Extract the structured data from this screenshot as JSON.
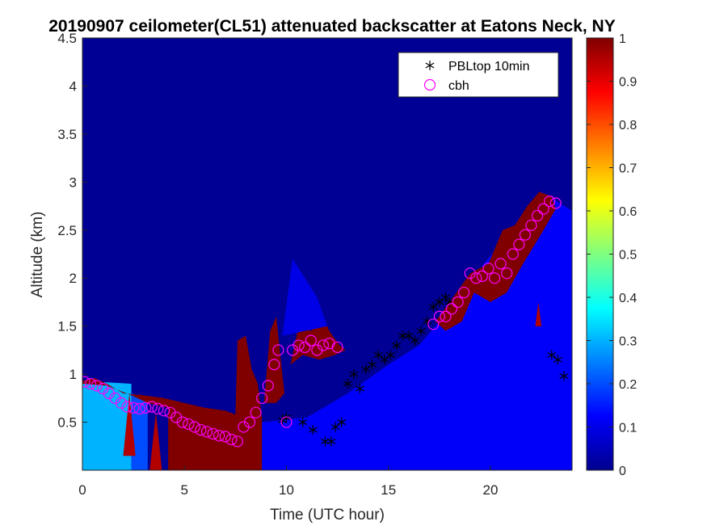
{
  "chart_data": {
    "type": "heatmap",
    "title": "20190907 ceilometer(CL51) attenuated backscatter at Eatons Neck, NY",
    "xlabel": "Time (UTC hour)",
    "ylabel": "Altitude (km)",
    "xlim": [
      0,
      24
    ],
    "ylim": [
      0,
      4.5
    ],
    "xticks": [
      0,
      5,
      10,
      15,
      20
    ],
    "xtick_labels": [
      "0",
      "5",
      "10",
      "15",
      "20"
    ],
    "yticks": [
      0.5,
      1,
      1.5,
      2,
      2.5,
      3,
      3.5,
      4,
      4.5
    ],
    "ytick_labels": [
      "0.5",
      "1",
      "1.5",
      "2",
      "2.5",
      "3",
      "3.5",
      "4",
      "4.5"
    ],
    "colorbar": {
      "colormap": "jet",
      "limits": [
        0,
        1
      ],
      "ticks": [
        0,
        0.1,
        0.2,
        0.3,
        0.4,
        0.5,
        0.6,
        0.7,
        0.8,
        0.9,
        1
      ],
      "tick_labels": [
        "0",
        "0.1",
        "0.2",
        "0.3",
        "0.4",
        "0.5",
        "0.6",
        "0.7",
        "0.8",
        "0.9",
        "1"
      ]
    },
    "legend": {
      "placement": "top-right",
      "entries": [
        "PBLtop 10min",
        "cbh"
      ]
    },
    "background_value": 0.02,
    "backscatter_regions": [
      {
        "value": 0.3,
        "polygon": [
          [
            0,
            0
          ],
          [
            2.4,
            0
          ],
          [
            2.4,
            0.9
          ],
          [
            0,
            0.93
          ]
        ]
      },
      {
        "value": 0.2,
        "polygon": [
          [
            2.4,
            0
          ],
          [
            3.2,
            0
          ],
          [
            3.2,
            0.75
          ],
          [
            2.4,
            0.8
          ]
        ]
      },
      {
        "value": 1.0,
        "polygon": [
          [
            0,
            0.93
          ],
          [
            0.6,
            0.96
          ],
          [
            1.2,
            0.9
          ],
          [
            2.0,
            0.8
          ],
          [
            3.0,
            0.78
          ],
          [
            4.0,
            0.75
          ],
          [
            5.0,
            0.7
          ],
          [
            6.0,
            0.65
          ],
          [
            7.0,
            0.62
          ],
          [
            7.5,
            0.58
          ],
          [
            7.6,
            1.35
          ],
          [
            8.0,
            1.4
          ],
          [
            8.3,
            1.05
          ],
          [
            8.6,
            0.9
          ],
          [
            8.8,
            0.55
          ],
          [
            8.8,
            0
          ],
          [
            4.2,
            0
          ],
          [
            4.2,
            0.65
          ],
          [
            3.2,
            0.7
          ],
          [
            2.4,
            0.78
          ],
          [
            1.2,
            0.88
          ],
          [
            0,
            0.9
          ]
        ]
      },
      {
        "value": 0.95,
        "polygon": [
          [
            2.0,
            0.15
          ],
          [
            2.3,
            0.8
          ],
          [
            2.6,
            0.15
          ]
        ]
      },
      {
        "value": 0.95,
        "polygon": [
          [
            3.3,
            0
          ],
          [
            3.6,
            0.6
          ],
          [
            3.9,
            0
          ]
        ]
      },
      {
        "value": 1.0,
        "polygon": [
          [
            8.9,
            0.7
          ],
          [
            9.2,
            1.45
          ],
          [
            9.5,
            1.6
          ],
          [
            9.7,
            1.2
          ],
          [
            9.9,
            0.8
          ],
          [
            9.5,
            0.7
          ]
        ]
      },
      {
        "value": 1.0,
        "polygon": [
          [
            10.2,
            1.1
          ],
          [
            10.6,
            1.5
          ],
          [
            11.2,
            1.45
          ],
          [
            11.8,
            1.6
          ],
          [
            12.1,
            1.45
          ],
          [
            12.6,
            1.3
          ],
          [
            12.9,
            1.25
          ],
          [
            12.4,
            1.2
          ],
          [
            11.6,
            1.15
          ],
          [
            10.8,
            1.2
          ]
        ]
      },
      {
        "value": 0.12,
        "polygon": [
          [
            8.8,
            0
          ],
          [
            24,
            0
          ],
          [
            24,
            2.7
          ],
          [
            22.5,
            2.9
          ],
          [
            21,
            2.5
          ],
          [
            19.5,
            2.1
          ],
          [
            18.5,
            1.8
          ],
          [
            17.5,
            1.55
          ],
          [
            16.5,
            1.3
          ],
          [
            15,
            1.1
          ],
          [
            13,
            0.8
          ],
          [
            11,
            0.55
          ],
          [
            8.8,
            0.5
          ]
        ]
      },
      {
        "value": 0.1,
        "polygon": [
          [
            9.8,
            1.4
          ],
          [
            10.3,
            2.2
          ],
          [
            11.5,
            1.8
          ],
          [
            12.0,
            1.5
          ]
        ]
      },
      {
        "value": 1.0,
        "polygon": [
          [
            17.3,
            1.55
          ],
          [
            18.0,
            1.75
          ],
          [
            19.0,
            2.05
          ],
          [
            19.9,
            2.15
          ],
          [
            20.6,
            2.5
          ],
          [
            21.2,
            2.55
          ],
          [
            21.8,
            2.75
          ],
          [
            22.4,
            2.9
          ],
          [
            23.0,
            2.85
          ],
          [
            23.2,
            2.72
          ],
          [
            22.6,
            2.5
          ],
          [
            21.6,
            2.15
          ],
          [
            20.8,
            1.85
          ],
          [
            20.0,
            1.75
          ],
          [
            19.2,
            1.85
          ],
          [
            18.6,
            1.55
          ],
          [
            17.8,
            1.45
          ]
        ]
      },
      {
        "value": 0.95,
        "polygon": [
          [
            22.2,
            1.5
          ],
          [
            22.35,
            1.75
          ],
          [
            22.5,
            1.5
          ]
        ]
      }
    ],
    "series": [
      {
        "name": "PBLtop 10min",
        "marker": "asterisk",
        "color": "#000000",
        "x": [
          9.8,
          10.0,
          10.8,
          11.3,
          11.9,
          12.2,
          12.4,
          12.7,
          13.0,
          13.3,
          13.6,
          13.9,
          14.2,
          14.5,
          14.8,
          15.1,
          15.4,
          15.7,
          16.0,
          16.3,
          16.6,
          16.9,
          17.2,
          17.5,
          17.8,
          18.0,
          23.0,
          23.3,
          23.6
        ],
        "y": [
          0.52,
          0.55,
          0.5,
          0.42,
          0.3,
          0.3,
          0.45,
          0.5,
          0.9,
          1.0,
          0.85,
          1.05,
          1.1,
          1.2,
          1.15,
          1.2,
          1.3,
          1.4,
          1.4,
          1.35,
          1.45,
          1.55,
          1.7,
          1.75,
          1.8,
          1.75,
          1.2,
          1.15,
          0.98
        ]
      },
      {
        "name": "cbh",
        "marker": "circle",
        "color": "#ff00ff",
        "x": [
          0.1,
          0.4,
          0.7,
          1.0,
          1.3,
          1.6,
          1.9,
          2.2,
          2.5,
          2.8,
          3.1,
          3.4,
          3.7,
          4.0,
          4.3,
          4.6,
          4.9,
          5.2,
          5.5,
          5.8,
          6.1,
          6.4,
          6.7,
          7.0,
          7.3,
          7.6,
          7.9,
          8.2,
          8.5,
          8.8,
          9.1,
          9.4,
          9.6,
          10.0,
          10.3,
          10.6,
          10.9,
          11.2,
          11.5,
          11.8,
          12.1,
          12.5,
          17.2,
          17.5,
          17.8,
          18.1,
          18.4,
          18.7,
          19.0,
          19.3,
          19.6,
          19.9,
          20.2,
          20.5,
          20.8,
          21.1,
          21.4,
          21.7,
          22.0,
          22.3,
          22.6,
          22.9,
          23.2
        ],
        "y": [
          0.92,
          0.9,
          0.88,
          0.85,
          0.8,
          0.75,
          0.7,
          0.66,
          0.65,
          0.64,
          0.65,
          0.66,
          0.64,
          0.62,
          0.6,
          0.55,
          0.5,
          0.48,
          0.45,
          0.42,
          0.4,
          0.38,
          0.36,
          0.35,
          0.32,
          0.3,
          0.45,
          0.5,
          0.6,
          0.75,
          0.88,
          1.1,
          1.25,
          0.5,
          1.25,
          1.3,
          1.28,
          1.35,
          1.25,
          1.3,
          1.32,
          1.28,
          1.52,
          1.6,
          1.6,
          1.68,
          1.75,
          1.85,
          2.05,
          2.0,
          2.02,
          2.1,
          2.0,
          2.15,
          2.05,
          2.25,
          2.35,
          2.45,
          2.55,
          2.65,
          2.72,
          2.8,
          2.78
        ]
      }
    ]
  }
}
